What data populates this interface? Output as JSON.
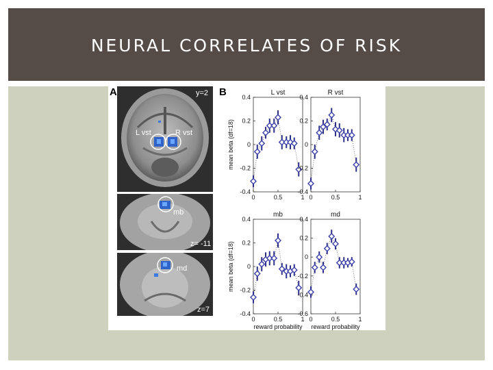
{
  "slide": {
    "title": "NEURAL CORRELATES OF RISK"
  },
  "figure": {
    "panel_a_label": "A",
    "panel_b_label": "B",
    "brain_slices": [
      {
        "coord": "y=2",
        "labels": [
          "L vst",
          "R vst"
        ]
      },
      {
        "coord": "z= -11",
        "labels": [
          "mb"
        ]
      },
      {
        "coord": "z=7",
        "labels": [
          "md"
        ]
      }
    ]
  },
  "chart_data": [
    {
      "type": "scatter",
      "title": "L vst",
      "xlabel": "",
      "ylabel": "mean beta (df=18)",
      "xlim": [
        0,
        1
      ],
      "ylim": [
        -0.4,
        0.4
      ],
      "xticks": [
        "0",
        "0.5",
        "1"
      ],
      "yticks": [
        "0.4",
        "0.2",
        "0",
        "-0.2",
        "-0.4"
      ],
      "x": [
        0,
        0.08,
        0.17,
        0.25,
        0.33,
        0.42,
        0.5,
        0.58,
        0.67,
        0.75,
        0.83,
        0.92
      ],
      "y": [
        -0.31,
        -0.06,
        0.01,
        0.1,
        0.16,
        0.16,
        0.23,
        0.02,
        0.02,
        0.02,
        0.01,
        -0.21
      ],
      "err": [
        0.05,
        0.06,
        0.06,
        0.05,
        0.06,
        0.06,
        0.06,
        0.06,
        0.05,
        0.06,
        0.05,
        0.06
      ]
    },
    {
      "type": "scatter",
      "title": "R vst",
      "xlabel": "",
      "ylabel": "",
      "xlim": [
        0,
        1
      ],
      "ylim": [
        -0.4,
        0.4
      ],
      "xticks": [
        "0",
        "0.5",
        "1"
      ],
      "yticks": [
        "0.4",
        "0.2",
        "0",
        "-0.2",
        "-0.4"
      ],
      "x": [
        0,
        0.08,
        0.17,
        0.25,
        0.33,
        0.42,
        0.5,
        0.58,
        0.67,
        0.75,
        0.83,
        0.92
      ],
      "y": [
        -0.33,
        -0.06,
        0.1,
        0.15,
        0.17,
        0.25,
        0.13,
        0.12,
        0.08,
        0.08,
        0.08,
        -0.17
      ],
      "err": [
        0.05,
        0.06,
        0.06,
        0.06,
        0.05,
        0.06,
        0.06,
        0.06,
        0.06,
        0.05,
        0.05,
        0.06
      ]
    },
    {
      "type": "scatter",
      "title": "mb",
      "xlabel": "reward probability",
      "ylabel": "mean beta (df=18)",
      "xlim": [
        0,
        1
      ],
      "ylim": [
        -0.4,
        0.4
      ],
      "xticks": [
        "0",
        "0.5",
        "1"
      ],
      "yticks": [
        "0.4",
        "0.2",
        "0",
        "-0.2",
        "-0.4"
      ],
      "x": [
        0,
        0.08,
        0.17,
        0.25,
        0.33,
        0.42,
        0.5,
        0.58,
        0.67,
        0.75,
        0.83,
        0.92
      ],
      "y": [
        -0.26,
        -0.06,
        0.02,
        0.06,
        0.07,
        0.07,
        0.22,
        -0.02,
        -0.04,
        -0.04,
        -0.03,
        -0.18
      ],
      "err": [
        0.05,
        0.06,
        0.06,
        0.06,
        0.06,
        0.06,
        0.06,
        0.05,
        0.06,
        0.05,
        0.05,
        0.06
      ]
    },
    {
      "type": "scatter",
      "title": "md",
      "xlabel": "reward probability",
      "ylabel": "",
      "xlim": [
        0,
        1
      ],
      "ylim": [
        -0.6,
        0.4
      ],
      "xticks": [
        "0",
        "0.5",
        "1"
      ],
      "yticks": [
        "0.4",
        "0.2",
        "0",
        "-0.2",
        "-0.4",
        "-0.6"
      ],
      "x": [
        0,
        0.08,
        0.17,
        0.25,
        0.33,
        0.42,
        0.5,
        0.58,
        0.67,
        0.75,
        0.83,
        0.92
      ],
      "y": [
        -0.37,
        -0.11,
        0.0,
        -0.11,
        0.09,
        0.22,
        0.14,
        -0.06,
        -0.06,
        -0.06,
        -0.05,
        -0.34
      ],
      "err": [
        0.06,
        0.06,
        0.06,
        0.06,
        0.06,
        0.07,
        0.06,
        0.06,
        0.06,
        0.05,
        0.05,
        0.06
      ]
    }
  ]
}
